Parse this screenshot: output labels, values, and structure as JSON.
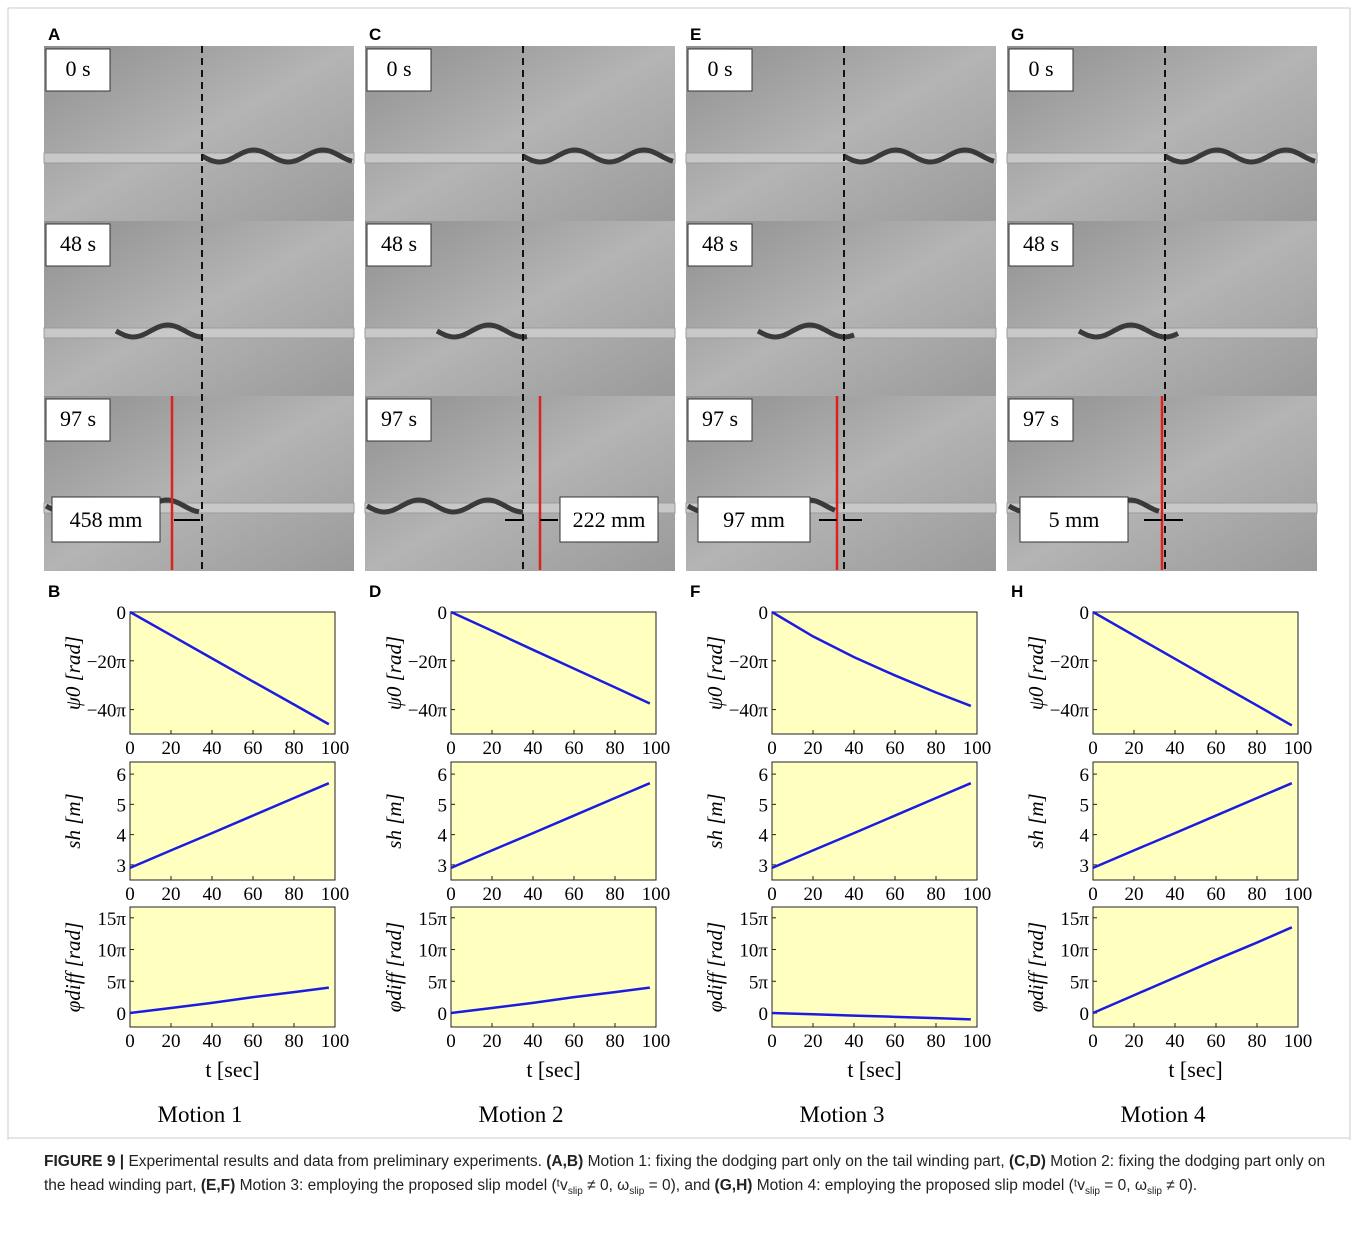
{
  "figure": {
    "columns": [
      {
        "photo_letter": "A",
        "times": [
          "0 s",
          "48 s",
          "97 s"
        ],
        "distance": "458 mm",
        "plot_letter": "B",
        "motion": "Motion 1"
      },
      {
        "photo_letter": "C",
        "times": [
          "0 s",
          "48 s",
          "97 s"
        ],
        "distance": "222 mm",
        "plot_letter": "D",
        "motion": "Motion 2"
      },
      {
        "photo_letter": "E",
        "times": [
          "0 s",
          "48 s",
          "97 s"
        ],
        "distance": "97 mm",
        "plot_letter": "F",
        "motion": "Motion 3"
      },
      {
        "photo_letter": "G",
        "times": [
          "0 s",
          "48 s",
          "97 s"
        ],
        "distance": "5 mm",
        "plot_letter": "H",
        "motion": "Motion 4"
      }
    ],
    "caption": [
      {
        "text": "FIGURE 9 |",
        "bold": true
      },
      {
        "text": " Experimental results and data from preliminary experiments. "
      },
      {
        "text": "(A,B)",
        "bold": true
      },
      {
        "text": " Motion 1: fixing the dodging part only on the tail winding part, "
      },
      {
        "text": "(C,D)",
        "bold": true
      },
      {
        "text": " Motion 2: fixing the dodging part only on the head winding part, "
      },
      {
        "text": "(E,F)",
        "bold": true
      },
      {
        "text": " Motion 3: employing the proposed slip model ("
      },
      {
        "text": "ᵗv"
      },
      {
        "text": "slip",
        "sub": true
      },
      {
        "text": " ≠ 0,  ω"
      },
      {
        "text": "slip",
        "sub": true
      },
      {
        "text": " = 0), and "
      },
      {
        "text": "(G,H)",
        "bold": true
      },
      {
        "text": " Motion 4: employing the proposed slip model ("
      },
      {
        "text": "ᵗv"
      },
      {
        "text": "slip",
        "sub": true
      },
      {
        "text": " = 0,  ω"
      },
      {
        "text": "slip",
        "sub": true
      },
      {
        "text": " ≠ 0)."
      }
    ]
  },
  "chart_data": [
    {
      "type": "line",
      "y_label": "ψ0 [rad]",
      "background": "#ffffc0",
      "x": [
        0,
        20,
        40,
        60,
        80,
        97
      ],
      "series": [
        {
          "color": "#1c1ce0",
          "values": [
            0,
            -9.5,
            -19,
            -28.5,
            -37.9,
            -46
          ]
        }
      ],
      "xlim": [
        0,
        100
      ],
      "xticks": [
        0,
        20,
        40,
        60,
        80,
        100
      ],
      "ylim": [
        -50,
        0
      ],
      "yticks": [
        {
          "value": -40,
          "label": "−40π"
        },
        {
          "value": -20,
          "label": "−20π"
        },
        0
      ]
    },
    {
      "type": "line",
      "y_label": "sh [m]",
      "background": "#ffffc0",
      "x": [
        0,
        20,
        40,
        60,
        80,
        97
      ],
      "series": [
        {
          "color": "#1c1ce0",
          "values": [
            2.9,
            3.48,
            4.05,
            4.63,
            5.21,
            5.7
          ]
        }
      ],
      "xlim": [
        0,
        100
      ],
      "xticks": [
        0,
        20,
        40,
        60,
        80,
        100
      ],
      "ylim": [
        2.5,
        6.4
      ],
      "yticks": [
        3,
        4,
        5,
        6
      ]
    },
    {
      "type": "line",
      "y_label": "φdiff [rad]",
      "x_label": "t [sec]",
      "background": "#ffffc0",
      "x": [
        0,
        20,
        40,
        60,
        80,
        97
      ],
      "series": [
        {
          "color": "#1c1ce0",
          "values": [
            0,
            0.8,
            1.6,
            2.5,
            3.3,
            4
          ]
        }
      ],
      "xlim": [
        0,
        100
      ],
      "xticks": [
        0,
        20,
        40,
        60,
        80,
        100
      ],
      "ylim": [
        -2.2,
        16.7
      ],
      "yticks": [
        0,
        {
          "value": 5,
          "label": "5π"
        },
        {
          "value": 10,
          "label": "10π"
        },
        {
          "value": 15,
          "label": "15π"
        }
      ]
    },
    {
      "type": "line",
      "y_label": "ψ0 [rad]",
      "background": "#ffffc0",
      "x": [
        0,
        20,
        40,
        60,
        80,
        97
      ],
      "series": [
        {
          "color": "#1c1ce0",
          "values": [
            0,
            -7.7,
            -15.5,
            -23.2,
            -30.9,
            -37.5
          ]
        }
      ],
      "xlim": [
        0,
        100
      ],
      "xticks": [
        0,
        20,
        40,
        60,
        80,
        100
      ],
      "ylim": [
        -50,
        0
      ],
      "yticks": [
        {
          "value": -40,
          "label": "−40π"
        },
        {
          "value": -20,
          "label": "−20π"
        },
        0
      ]
    },
    {
      "type": "line",
      "y_label": "sh [m]",
      "background": "#ffffc0",
      "x": [
        0,
        20,
        40,
        60,
        80,
        97
      ],
      "series": [
        {
          "color": "#1c1ce0",
          "values": [
            2.9,
            3.48,
            4.05,
            4.63,
            5.21,
            5.7
          ]
        }
      ],
      "xlim": [
        0,
        100
      ],
      "xticks": [
        0,
        20,
        40,
        60,
        80,
        100
      ],
      "ylim": [
        2.5,
        6.4
      ],
      "yticks": [
        3,
        4,
        5,
        6
      ]
    },
    {
      "type": "line",
      "y_label": "φdiff [rad]",
      "x_label": "t [sec]",
      "background": "#ffffc0",
      "x": [
        0,
        20,
        40,
        60,
        80,
        97
      ],
      "series": [
        {
          "color": "#1c1ce0",
          "values": [
            0,
            0.8,
            1.6,
            2.5,
            3.3,
            4
          ]
        }
      ],
      "xlim": [
        0,
        100
      ],
      "xticks": [
        0,
        20,
        40,
        60,
        80,
        100
      ],
      "ylim": [
        -2.2,
        16.7
      ],
      "yticks": [
        0,
        {
          "value": 5,
          "label": "5π"
        },
        {
          "value": 10,
          "label": "10π"
        },
        {
          "value": 15,
          "label": "15π"
        }
      ]
    },
    {
      "type": "line",
      "y_label": "ψ0 [rad]",
      "background": "#ffffc0",
      "x": [
        0,
        20,
        40,
        60,
        80,
        97
      ],
      "series": [
        {
          "color": "#1c1ce0",
          "values": [
            0,
            -10,
            -18.5,
            -26,
            -33,
            -38.5
          ]
        }
      ],
      "xlim": [
        0,
        100
      ],
      "xticks": [
        0,
        20,
        40,
        60,
        80,
        100
      ],
      "ylim": [
        -50,
        0
      ],
      "yticks": [
        {
          "value": -40,
          "label": "−40π"
        },
        {
          "value": -20,
          "label": "−20π"
        },
        0
      ]
    },
    {
      "type": "line",
      "y_label": "sh [m]",
      "background": "#ffffc0",
      "x": [
        0,
        20,
        40,
        60,
        80,
        97
      ],
      "series": [
        {
          "color": "#1c1ce0",
          "values": [
            2.9,
            3.48,
            4.05,
            4.63,
            5.21,
            5.7
          ]
        }
      ],
      "xlim": [
        0,
        100
      ],
      "xticks": [
        0,
        20,
        40,
        60,
        80,
        100
      ],
      "ylim": [
        2.5,
        6.4
      ],
      "yticks": [
        3,
        4,
        5,
        6
      ]
    },
    {
      "type": "line",
      "y_label": "φdiff [rad]",
      "x_label": "t [sec]",
      "background": "#ffffc0",
      "x": [
        0,
        20,
        40,
        60,
        80,
        97
      ],
      "series": [
        {
          "color": "#1c1ce0",
          "values": [
            0,
            -0.2,
            -0.4,
            -0.6,
            -0.8,
            -1
          ]
        }
      ],
      "xlim": [
        0,
        100
      ],
      "xticks": [
        0,
        20,
        40,
        60,
        80,
        100
      ],
      "ylim": [
        -2.2,
        16.7
      ],
      "yticks": [
        0,
        {
          "value": 5,
          "label": "5π"
        },
        {
          "value": 10,
          "label": "10π"
        },
        {
          "value": 15,
          "label": "15π"
        }
      ]
    },
    {
      "type": "line",
      "y_label": "ψ0 [rad]",
      "background": "#ffffc0",
      "x": [
        0,
        20,
        40,
        60,
        80,
        97
      ],
      "series": [
        {
          "color": "#1c1ce0",
          "values": [
            0,
            -9.6,
            -19.2,
            -28.8,
            -38.3,
            -46.5
          ]
        }
      ],
      "xlim": [
        0,
        100
      ],
      "xticks": [
        0,
        20,
        40,
        60,
        80,
        100
      ],
      "ylim": [
        -50,
        0
      ],
      "yticks": [
        {
          "value": -40,
          "label": "−40π"
        },
        {
          "value": -20,
          "label": "−20π"
        },
        0
      ]
    },
    {
      "type": "line",
      "y_label": "sh [m]",
      "background": "#ffffc0",
      "x": [
        0,
        20,
        40,
        60,
        80,
        97
      ],
      "series": [
        {
          "color": "#1c1ce0",
          "values": [
            2.9,
            3.48,
            4.05,
            4.63,
            5.21,
            5.7
          ]
        }
      ],
      "xlim": [
        0,
        100
      ],
      "xticks": [
        0,
        20,
        40,
        60,
        80,
        100
      ],
      "ylim": [
        2.5,
        6.4
      ],
      "yticks": [
        3,
        4,
        5,
        6
      ]
    },
    {
      "type": "line",
      "y_label": "φdiff [rad]",
      "x_label": "t [sec]",
      "background": "#ffffc0",
      "x": [
        0,
        20,
        40,
        60,
        80,
        97
      ],
      "series": [
        {
          "color": "#1c1ce0",
          "values": [
            0,
            2.8,
            5.6,
            8.4,
            11.1,
            13.5
          ]
        }
      ],
      "xlim": [
        0,
        100
      ],
      "xticks": [
        0,
        20,
        40,
        60,
        80,
        100
      ],
      "ylim": [
        -2.2,
        16.7
      ],
      "yticks": [
        0,
        {
          "value": 5,
          "label": "5π"
        },
        {
          "value": 10,
          "label": "10π"
        },
        {
          "value": 15,
          "label": "15π"
        }
      ]
    }
  ]
}
